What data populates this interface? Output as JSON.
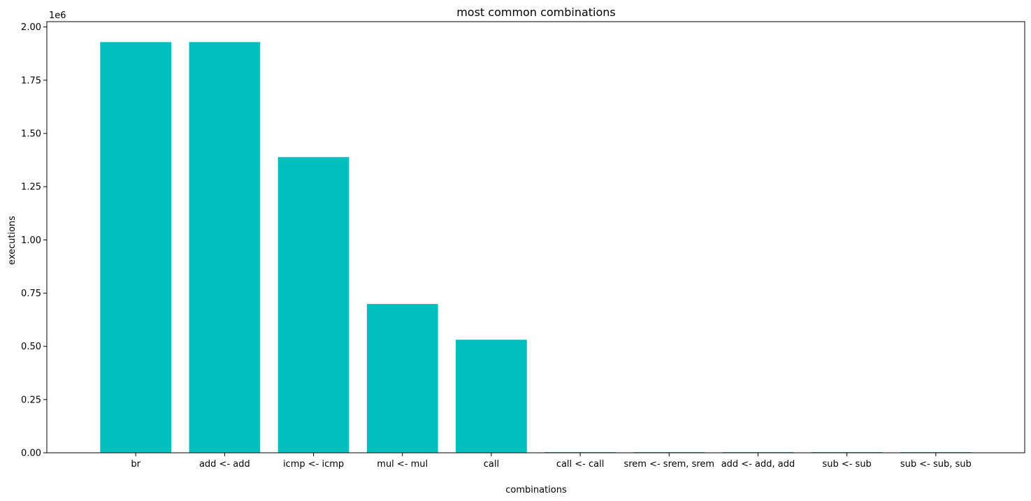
{
  "chart_data": {
    "type": "bar",
    "title": "most common combinations",
    "xlabel": "combinations",
    "ylabel": "executions",
    "y_offset_text": "1e6",
    "categories": [
      "br",
      "add <- add",
      "icmp <- icmp",
      "mul <- mul",
      "call",
      "call <- call",
      "srem <- srem, srem",
      "add <- add, add",
      "sub <- sub",
      "sub <- sub, sub"
    ],
    "values": [
      1929000,
      1929000,
      1389000,
      699000,
      531000,
      3000,
      3000,
      3000,
      3000,
      3000
    ],
    "ylim": [
      0,
      2025000
    ],
    "yticks": [
      0,
      250000,
      500000,
      750000,
      1000000,
      1250000,
      1500000,
      1750000,
      2000000
    ],
    "ytick_labels": [
      "0.00",
      "0.25",
      "0.50",
      "0.75",
      "1.00",
      "1.25",
      "1.50",
      "1.75",
      "2.00"
    ],
    "bar_color": "#00bfbf",
    "grid": false,
    "legend": "none"
  }
}
